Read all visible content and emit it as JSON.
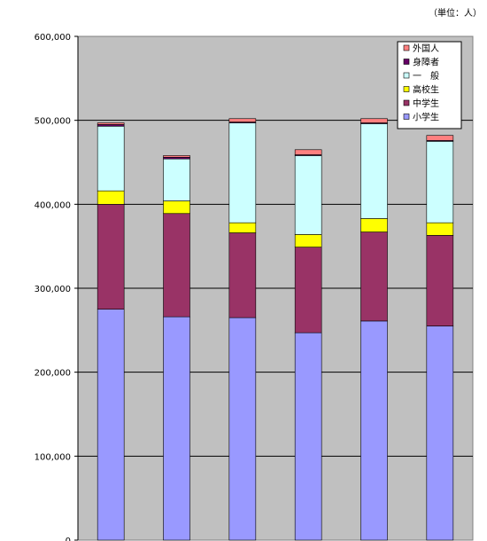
{
  "unit_note": "（単位：人）",
  "chart_data": {
    "type": "bar",
    "stacked": true,
    "categories": [
      "",
      "",
      "",
      "",
      "",
      ""
    ],
    "ylim": [
      0,
      600000
    ],
    "yticks": [
      "0",
      "100,000",
      "200,000",
      "300,000",
      "400,000",
      "500,000",
      "600,000"
    ],
    "grid": true,
    "legend_position": "top-right",
    "series": [
      {
        "name": "小学生",
        "color": "#9999ff",
        "values": [
          275000,
          266000,
          265000,
          247000,
          261000,
          255000
        ]
      },
      {
        "name": "中学生",
        "color": "#993366",
        "values": [
          125000,
          123000,
          101000,
          102000,
          106000,
          108000
        ]
      },
      {
        "name": "高校生",
        "color": "#ffff00",
        "values": [
          16000,
          15000,
          12000,
          15000,
          16000,
          15000
        ]
      },
      {
        "name": "一　般",
        "color": "#ccffff",
        "values": [
          77000,
          50000,
          119000,
          94000,
          113000,
          97000
        ]
      },
      {
        "name": "身障者",
        "color": "#660066",
        "values": [
          2000,
          2000,
          1000,
          1000,
          1000,
          1000
        ]
      },
      {
        "name": "外国人",
        "color": "#ff8080",
        "values": [
          2000,
          2000,
          4000,
          6000,
          5000,
          6000
        ]
      }
    ]
  }
}
